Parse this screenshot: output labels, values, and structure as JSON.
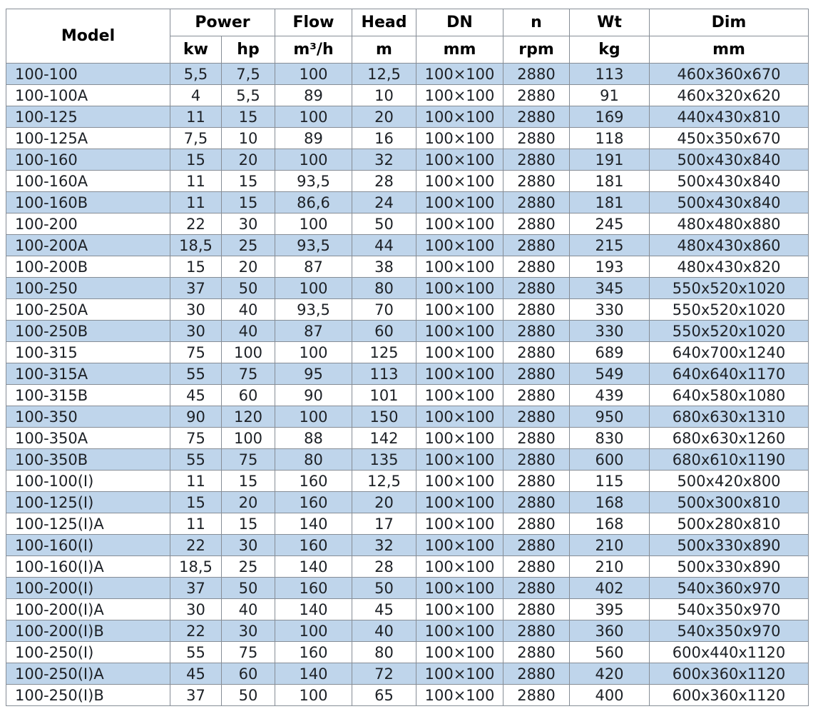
{
  "colors": {
    "band_blue": "#bfd5eb",
    "row_white": "#ffffff",
    "border_gray": "#868d96",
    "text": "#1d2126",
    "header_text": "#000000"
  },
  "table": {
    "header": {
      "model": "Model",
      "power": "Power",
      "power_unit_kw": "kw",
      "power_unit_hp": "hp",
      "flow": "Flow",
      "flow_unit": "m³/h",
      "head": "Head",
      "head_unit": "m",
      "dn": "DN",
      "dn_unit": "mm",
      "n": "n",
      "n_unit": "rpm",
      "wt": "Wt",
      "wt_unit": "kg",
      "dim": "Dim",
      "dim_unit": "mm"
    },
    "rows": [
      {
        "model": "100-100",
        "kw": "5,5",
        "hp": "7,5",
        "flow": "100",
        "head": "12,5",
        "dn": "100×100",
        "n": "2880",
        "wt": "113",
        "dim": "460x360x670"
      },
      {
        "model": "100-100A",
        "kw": "4",
        "hp": "5,5",
        "flow": "89",
        "head": "10",
        "dn": "100×100",
        "n": "2880",
        "wt": "91",
        "dim": "460x320x620"
      },
      {
        "model": "100-125",
        "kw": "11",
        "hp": "15",
        "flow": "100",
        "head": "20",
        "dn": "100×100",
        "n": "2880",
        "wt": "169",
        "dim": "440x430x810"
      },
      {
        "model": "100-125A",
        "kw": "7,5",
        "hp": "10",
        "flow": "89",
        "head": "16",
        "dn": "100×100",
        "n": "2880",
        "wt": "118",
        "dim": "450x350x670"
      },
      {
        "model": "100-160",
        "kw": "15",
        "hp": "20",
        "flow": "100",
        "head": "32",
        "dn": "100×100",
        "n": "2880",
        "wt": "191",
        "dim": "500x430x840"
      },
      {
        "model": "100-160A",
        "kw": "11",
        "hp": "15",
        "flow": "93,5",
        "head": "28",
        "dn": "100×100",
        "n": "2880",
        "wt": "181",
        "dim": "500x430x840"
      },
      {
        "model": "100-160B",
        "kw": "11",
        "hp": "15",
        "flow": "86,6",
        "head": "24",
        "dn": "100×100",
        "n": "2880",
        "wt": "181",
        "dim": "500x430x840"
      },
      {
        "model": "100-200",
        "kw": "22",
        "hp": "30",
        "flow": "100",
        "head": "50",
        "dn": "100×100",
        "n": "2880",
        "wt": "245",
        "dim": "480x480x880"
      },
      {
        "model": "100-200A",
        "kw": "18,5",
        "hp": "25",
        "flow": "93,5",
        "head": "44",
        "dn": "100×100",
        "n": "2880",
        "wt": "215",
        "dim": "480x430x860"
      },
      {
        "model": "100-200B",
        "kw": "15",
        "hp": "20",
        "flow": "87",
        "head": "38",
        "dn": "100×100",
        "n": "2880",
        "wt": "193",
        "dim": "480x430x820"
      },
      {
        "model": "100-250",
        "kw": "37",
        "hp": "50",
        "flow": "100",
        "head": "80",
        "dn": "100×100",
        "n": "2880",
        "wt": "345",
        "dim": "550x520x1020"
      },
      {
        "model": "100-250A",
        "kw": "30",
        "hp": "40",
        "flow": "93,5",
        "head": "70",
        "dn": "100×100",
        "n": "2880",
        "wt": "330",
        "dim": "550x520x1020"
      },
      {
        "model": "100-250B",
        "kw": "30",
        "hp": "40",
        "flow": "87",
        "head": "60",
        "dn": "100×100",
        "n": "2880",
        "wt": "330",
        "dim": "550x520x1020"
      },
      {
        "model": "100-315",
        "kw": "75",
        "hp": "100",
        "flow": "100",
        "head": "125",
        "dn": "100×100",
        "n": "2880",
        "wt": "689",
        "dim": "640x700x1240"
      },
      {
        "model": "100-315A",
        "kw": "55",
        "hp": "75",
        "flow": "95",
        "head": "113",
        "dn": "100×100",
        "n": "2880",
        "wt": "549",
        "dim": "640x640x1170"
      },
      {
        "model": "100-315B",
        "kw": "45",
        "hp": "60",
        "flow": "90",
        "head": "101",
        "dn": "100×100",
        "n": "2880",
        "wt": "439",
        "dim": "640x580x1080"
      },
      {
        "model": "100-350",
        "kw": "90",
        "hp": "120",
        "flow": "100",
        "head": "150",
        "dn": "100×100",
        "n": "2880",
        "wt": "950",
        "dim": "680x630x1310"
      },
      {
        "model": "100-350A",
        "kw": "75",
        "hp": "100",
        "flow": "88",
        "head": "142",
        "dn": "100×100",
        "n": "2880",
        "wt": "830",
        "dim": "680x630x1260"
      },
      {
        "model": "100-350B",
        "kw": "55",
        "hp": "75",
        "flow": "80",
        "head": "135",
        "dn": "100×100",
        "n": "2880",
        "wt": "600",
        "dim": "680x610x1190"
      },
      {
        "model": "100-100(I)",
        "kw": "11",
        "hp": "15",
        "flow": "160",
        "head": "12,5",
        "dn": "100×100",
        "n": "2880",
        "wt": "115",
        "dim": "500x420x800"
      },
      {
        "model": "100-125(I)",
        "kw": "15",
        "hp": "20",
        "flow": "160",
        "head": "20",
        "dn": "100×100",
        "n": "2880",
        "wt": "168",
        "dim": "500x300x810"
      },
      {
        "model": "100-125(I)A",
        "kw": "11",
        "hp": "15",
        "flow": "140",
        "head": "17",
        "dn": "100×100",
        "n": "2880",
        "wt": "168",
        "dim": "500x280x810"
      },
      {
        "model": "100-160(I)",
        "kw": "22",
        "hp": "30",
        "flow": "160",
        "head": "32",
        "dn": "100×100",
        "n": "2880",
        "wt": "210",
        "dim": "500x330x890"
      },
      {
        "model": "100-160(I)A",
        "kw": "18,5",
        "hp": "25",
        "flow": "140",
        "head": "28",
        "dn": "100×100",
        "n": "2880",
        "wt": "210",
        "dim": "500x330x890"
      },
      {
        "model": "100-200(I)",
        "kw": "37",
        "hp": "50",
        "flow": "160",
        "head": "50",
        "dn": "100×100",
        "n": "2880",
        "wt": "402",
        "dim": "540x360x970"
      },
      {
        "model": "100-200(I)A",
        "kw": "30",
        "hp": "40",
        "flow": "140",
        "head": "45",
        "dn": "100×100",
        "n": "2880",
        "wt": "395",
        "dim": "540x350x970"
      },
      {
        "model": "100-200(I)B",
        "kw": "22",
        "hp": "30",
        "flow": "100",
        "head": "40",
        "dn": "100×100",
        "n": "2880",
        "wt": "360",
        "dim": "540x350x970"
      },
      {
        "model": "100-250(I)",
        "kw": "55",
        "hp": "75",
        "flow": "160",
        "head": "80",
        "dn": "100×100",
        "n": "2880",
        "wt": "560",
        "dim": "600x440x1120"
      },
      {
        "model": "100-250(I)A",
        "kw": "45",
        "hp": "60",
        "flow": "140",
        "head": "72",
        "dn": "100×100",
        "n": "2880",
        "wt": "420",
        "dim": "600x360x1120"
      },
      {
        "model": "100-250(I)B",
        "kw": "37",
        "hp": "50",
        "flow": "100",
        "head": "65",
        "dn": "100×100",
        "n": "2880",
        "wt": "400",
        "dim": "600x360x1120"
      }
    ]
  }
}
